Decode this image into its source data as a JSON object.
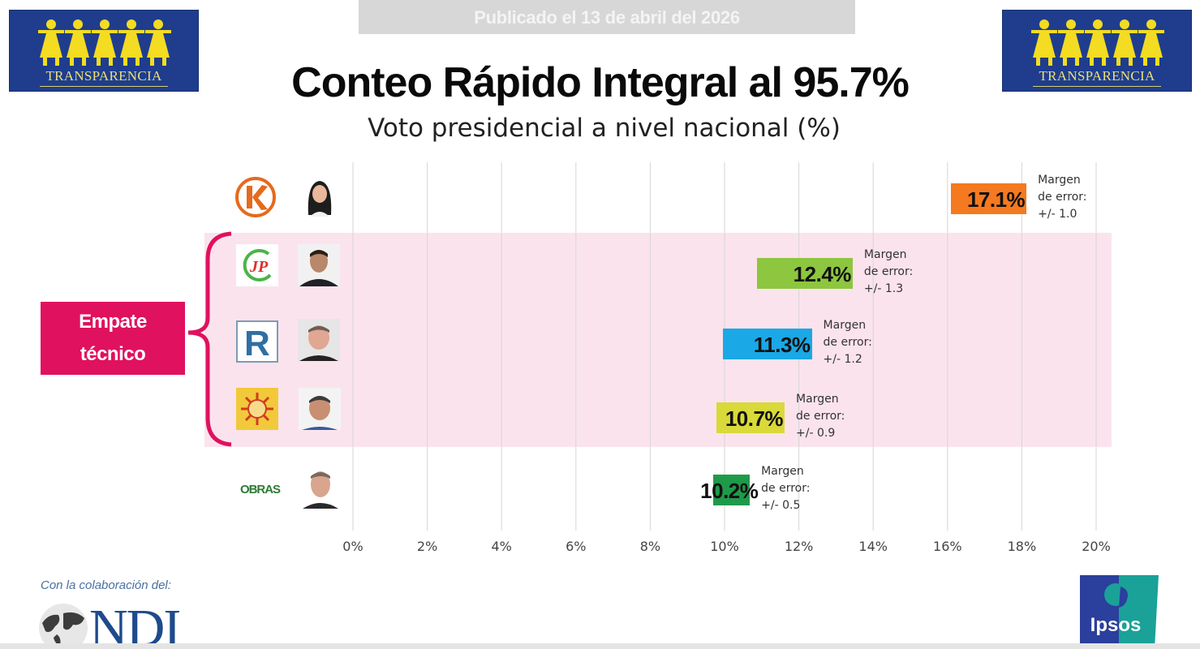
{
  "header": {
    "published": "Publicado el 13 de abril del 2026",
    "title": "Conteo Rápido Integral al 95.7%",
    "subtitle": "Voto presidencial a nivel nacional (%)",
    "left_logo_text": "TRANSPARENCIA",
    "right_logo_text": "TRANSPARENCIA"
  },
  "tie_label": "Empate técnico",
  "tie_label_lines": [
    "Empate",
    "técnico"
  ],
  "footer": {
    "collaboration": "Con la colaboración del:",
    "ndi": "NDI",
    "ipsos": "Ipsos"
  },
  "chart_data": {
    "type": "bar",
    "title": "Conteo Rápido Integral al 95.7%",
    "subtitle": "Voto presidencial a nivel nacional (%)",
    "xlabel": "",
    "ylabel": "",
    "xlim": [
      0,
      20
    ],
    "x_ticks": [
      0,
      2,
      4,
      6,
      8,
      10,
      12,
      14,
      16,
      18,
      20
    ],
    "x_tick_labels": [
      "0%",
      "2%",
      "4%",
      "6%",
      "8%",
      "10%",
      "12%",
      "14%",
      "16%",
      "18%",
      "20%"
    ],
    "grid": true,
    "orientation": "horizontal",
    "categories": [
      "K",
      "JP",
      "R",
      "Sol",
      "OBRAS"
    ],
    "values": [
      17.1,
      12.4,
      11.3,
      10.7,
      10.2
    ],
    "value_labels": [
      "17.1%",
      "12.4%",
      "11.3%",
      "10.7%",
      "10.2%"
    ],
    "margin_of_error": [
      1.0,
      1.3,
      1.2,
      0.9,
      0.5
    ],
    "margin_labels": [
      [
        "Margen",
        "de error:",
        "+/- 1.0"
      ],
      [
        "Margen",
        "de error:",
        "+/- 1.3"
      ],
      [
        "Margen",
        "de error:",
        "+/- 1.2"
      ],
      [
        "Margen",
        "de error:",
        "+/- 0.9"
      ],
      [
        "Margen",
        "de error:",
        "+/- 0.5"
      ]
    ],
    "colors": [
      "#f5791f",
      "#8dc63f",
      "#1aa8e6",
      "#d9d93a",
      "#1f9a4a"
    ],
    "highlight": {
      "label": "Empate técnico",
      "categories": [
        "JP",
        "R",
        "Sol"
      ],
      "color": "#fbe3ed"
    }
  }
}
